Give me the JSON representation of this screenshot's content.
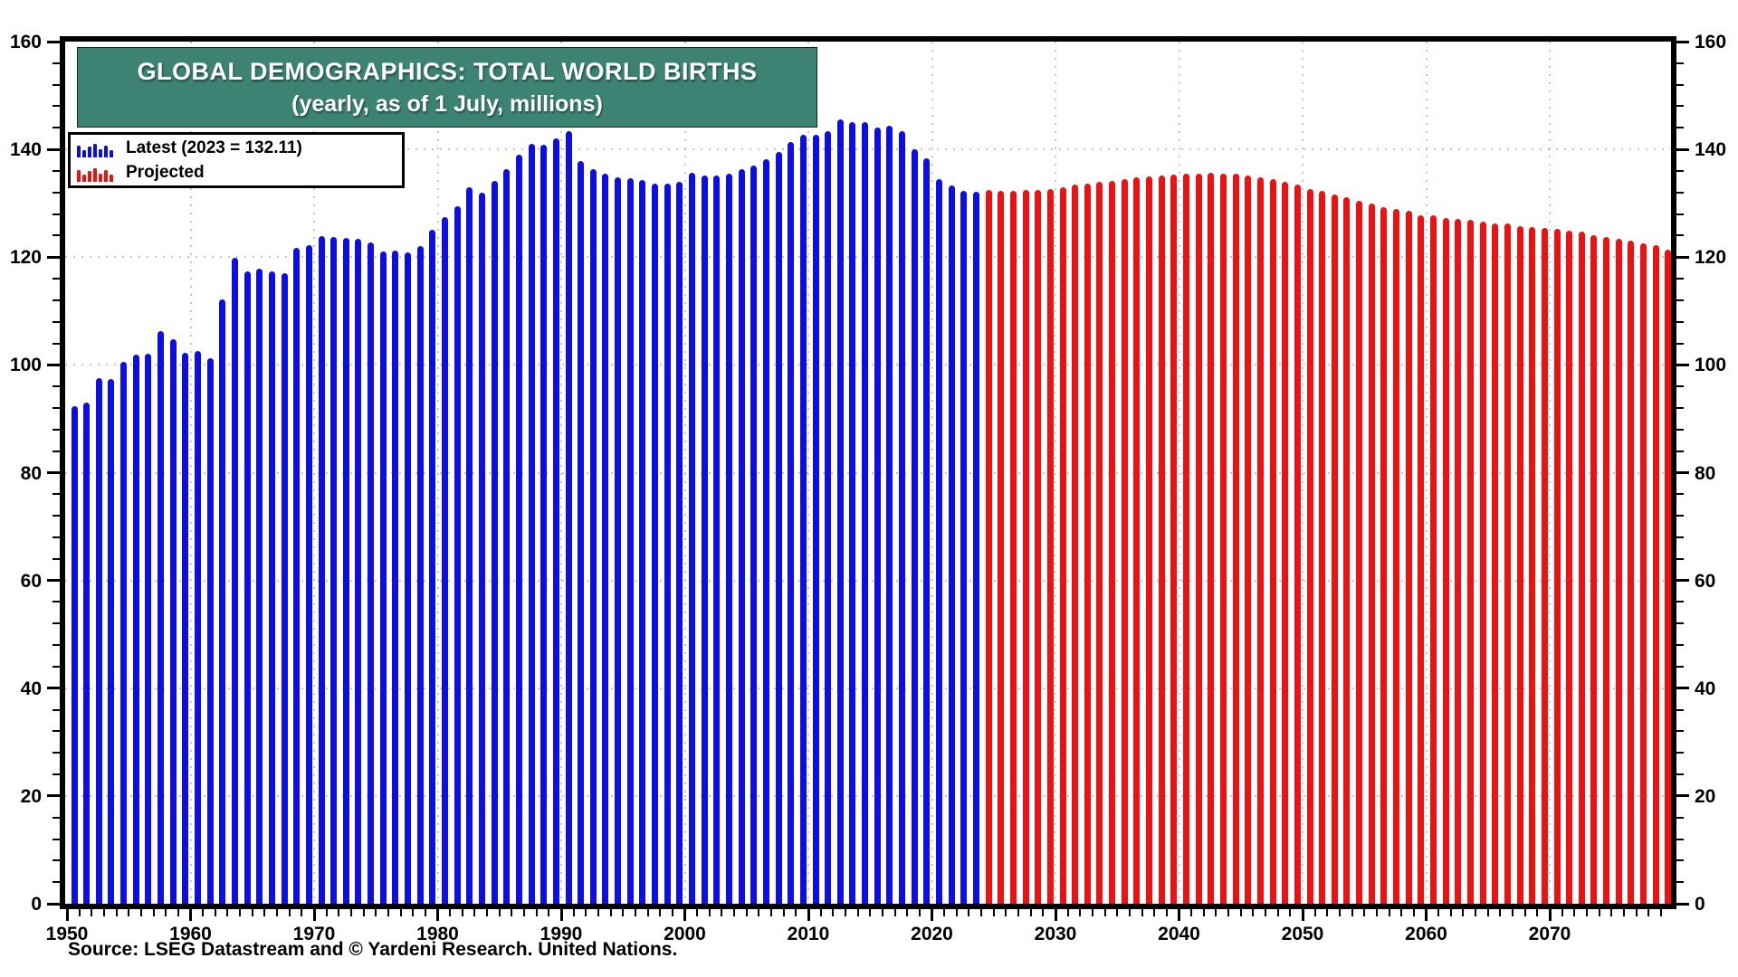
{
  "header": {
    "title": "GLOBAL DEMOGRAPHICS: TOTAL WORLD BIRTHS",
    "subtitle": "(yearly, as of 1 July, millions)",
    "box_color": "#3c8374"
  },
  "legend": {
    "items": [
      {
        "label": "Latest (2023 = 132.11)",
        "color": "#0d0de8"
      },
      {
        "label": "Projected",
        "color": "#ee1111"
      }
    ]
  },
  "source": "Source: LSEG Datastream and © Yardeni Research. United Nations.",
  "chart_data": {
    "type": "bar",
    "title": "GLOBAL DEMOGRAPHICS: TOTAL WORLD BIRTHS",
    "subtitle": "(yearly, as of 1 July, millions)",
    "xlabel": "",
    "ylabel": "millions",
    "ylim": [
      0,
      160
    ],
    "ytick_step": 20,
    "y_minor_step": 4,
    "yticks": [
      0,
      20,
      40,
      60,
      80,
      100,
      120,
      140,
      160
    ],
    "xticks": [
      1950,
      1960,
      1970,
      1980,
      1990,
      2000,
      2010,
      2020,
      2030,
      2040,
      2050,
      2060,
      2070
    ],
    "x_end": 2079,
    "grid": "dotted",
    "grid_color": "#c6c6c6",
    "legend_position": "upper-left",
    "series": [
      {
        "name": "Latest",
        "color": "#0d0de8",
        "start_year": 1950,
        "values": [
          92.3,
          93.0,
          97.6,
          97.4,
          100.5,
          101.9,
          102.1,
          106.3,
          104.7,
          102.3,
          102.5,
          101.2,
          112.2,
          119.8,
          117.3,
          117.8,
          117.3,
          117.1,
          121.8,
          122.3,
          123.9,
          123.8,
          123.5,
          123.4,
          122.7,
          121.1,
          121.2,
          120.8,
          122.0,
          125.1,
          127.4,
          129.4,
          133.0,
          131.9,
          134.2,
          136.3,
          139.0,
          141.0,
          140.8,
          142.0,
          143.3,
          137.9,
          136.4,
          135.5,
          134.9,
          134.7,
          134.3,
          133.7,
          133.7,
          134.0,
          135.6,
          135.2,
          135.1,
          135.5,
          136.3,
          137.0,
          138.2,
          139.6,
          141.3,
          142.7,
          142.7,
          143.4,
          145.6,
          145.0,
          145.1,
          144.0,
          144.4,
          143.3,
          140.1,
          138.3,
          134.4,
          133.3,
          132.3,
          132.11
        ]
      },
      {
        "name": "Projected",
        "color": "#ee1111",
        "start_year": 2024,
        "values": [
          132.4,
          132.3,
          132.3,
          132.5,
          132.5,
          132.7,
          133.0,
          133.4,
          133.6,
          133.9,
          134.2,
          134.4,
          134.8,
          135.0,
          135.2,
          135.3,
          135.5,
          135.5,
          135.6,
          135.5,
          135.5,
          135.2,
          134.8,
          134.4,
          133.9,
          133.4,
          132.7,
          132.3,
          131.6,
          131.1,
          130.5,
          129.9,
          129.3,
          128.9,
          128.6,
          127.8,
          127.7,
          127.2,
          127.1,
          126.9,
          126.6,
          126.3,
          126.2,
          125.8,
          125.6,
          125.4,
          125.2,
          124.9,
          124.7,
          124.1,
          123.8,
          123.4,
          123.0,
          122.6,
          122.3,
          121.4
        ]
      }
    ]
  }
}
